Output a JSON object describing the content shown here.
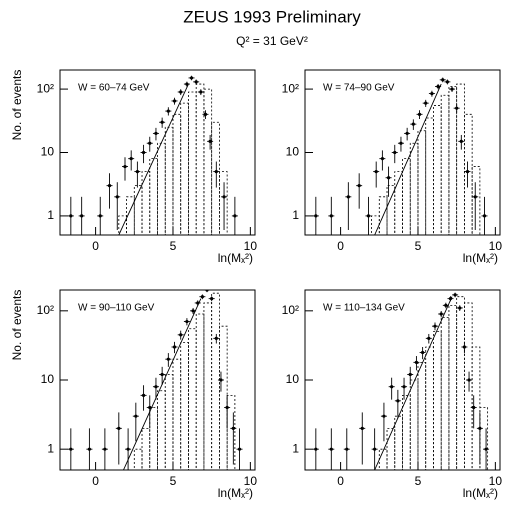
{
  "title": "ZEUS 1993 Preliminary",
  "subtitle": "Q² = 31 GeV²",
  "chart_data": [
    {
      "type": "errorbar",
      "label": "W = 60–74 GeV",
      "xlabel": "ln(Mₓ²)",
      "ylabel": "No. of events",
      "xlim": [
        -2.3,
        10.3
      ],
      "xticks": [
        0,
        5,
        10
      ],
      "ylim": [
        0.5,
        200
      ],
      "yticks": [
        1,
        10,
        {
          "value": 100,
          "label": "10²"
        }
      ],
      "log_y": true,
      "points": {
        "x": [
          -1.6,
          -0.9,
          0.3,
          0.9,
          1.4,
          1.9,
          2.3,
          2.7,
          3.1,
          3.5,
          3.9,
          4.3,
          4.7,
          5.1,
          5.5,
          5.9,
          6.2,
          6.5,
          6.8,
          7.1,
          7.4,
          7.8,
          8.3,
          9.0
        ],
        "values": [
          1,
          1,
          1,
          3,
          2,
          6,
          8,
          5,
          10,
          14,
          20,
          30,
          45,
          65,
          90,
          120,
          150,
          130,
          90,
          40,
          15,
          5,
          2,
          1
        ],
        "errors": [
          1,
          1,
          1,
          1.7,
          1.4,
          2.4,
          2.8,
          2.2,
          3.2,
          3.7,
          4.5,
          5.5,
          6.7,
          8,
          9.5,
          11,
          12,
          11.4,
          9.5,
          6.3,
          3.9,
          2.2,
          1.4,
          1
        ]
      },
      "histogram": {
        "bins": [
          1,
          1.5,
          2,
          2.5,
          3,
          3.5,
          4,
          4.5,
          5,
          5.5,
          6,
          6.5,
          7,
          7.5,
          8,
          8.5,
          9
        ],
        "counts": [
          0.4,
          1,
          2,
          3,
          5,
          8,
          14,
          25,
          40,
          60,
          90,
          120,
          100,
          30,
          5,
          0.4
        ]
      },
      "fit": {
        "x": [
          1.5,
          6.0
        ],
        "values": [
          0.5,
          120
        ]
      }
    },
    {
      "type": "errorbar",
      "label": "W = 74–90 GeV",
      "xlabel": "ln(Mₓ²)",
      "xlim": [
        -2.3,
        10.3
      ],
      "xticks": [
        0,
        5,
        10
      ],
      "ylim": [
        0.5,
        200
      ],
      "yticks": [
        1,
        10,
        {
          "value": 100,
          "label": "10²"
        }
      ],
      "log_y": true,
      "points": {
        "x": [
          -1.6,
          -0.6,
          0.5,
          1.2,
          1.8,
          2.3,
          2.7,
          3.1,
          3.5,
          3.9,
          4.3,
          4.7,
          5.1,
          5.5,
          5.9,
          6.3,
          6.6,
          6.9,
          7.2,
          7.5,
          7.8,
          8.2,
          8.7,
          9.3
        ],
        "values": [
          1,
          1,
          2,
          3,
          1,
          5,
          8,
          4,
          10,
          14,
          20,
          28,
          40,
          60,
          85,
          110,
          140,
          130,
          100,
          50,
          15,
          5,
          2,
          1
        ],
        "errors": [
          1,
          1,
          1.4,
          1.7,
          1,
          2.2,
          2.8,
          2,
          3.2,
          3.7,
          4.5,
          5.3,
          6.3,
          7.7,
          9.2,
          10.5,
          11.8,
          11.4,
          10,
          7.1,
          3.9,
          2.2,
          1.4,
          1
        ]
      },
      "histogram": {
        "bins": [
          1.5,
          2,
          2.5,
          3,
          3.5,
          4,
          4.5,
          5,
          5.5,
          6,
          6.5,
          7,
          7.5,
          8,
          8.5,
          9,
          9.5
        ],
        "counts": [
          0.4,
          1,
          2,
          3,
          5,
          8,
          14,
          22,
          35,
          55,
          80,
          110,
          120,
          40,
          6,
          0.4
        ]
      },
      "fit": {
        "x": [
          2.2,
          6.5
        ],
        "values": [
          0.5,
          120
        ]
      }
    },
    {
      "type": "errorbar",
      "label": "W = 90–110 GeV",
      "xlabel": "ln(Mₓ²)",
      "ylabel": "No. of events",
      "xlim": [
        -2.3,
        10.3
      ],
      "xticks": [
        0,
        5,
        10
      ],
      "ylim": [
        0.5,
        200
      ],
      "yticks": [
        1,
        10,
        {
          "value": 100,
          "label": "10²"
        }
      ],
      "log_y": true,
      "points": {
        "x": [
          -1.6,
          -0.4,
          0.6,
          1.5,
          2.1,
          2.6,
          3.1,
          3.5,
          3.9,
          4.3,
          4.7,
          5.1,
          5.5,
          5.9,
          6.3,
          6.6,
          6.9,
          7.2,
          7.5,
          7.8,
          8.1,
          8.5,
          8.9,
          9.3
        ],
        "values": [
          1,
          1,
          1,
          2,
          1,
          3,
          6,
          4,
          8,
          12,
          20,
          30,
          45,
          70,
          100,
          130,
          160,
          200,
          150,
          40,
          10,
          4,
          2,
          1
        ],
        "errors": [
          1,
          1,
          1,
          1.4,
          1,
          1.7,
          2.4,
          2,
          2.8,
          3.5,
          4.5,
          5.5,
          6.7,
          8.4,
          10,
          11.4,
          12.6,
          14,
          12.2,
          6.3,
          3.2,
          2,
          1.4,
          1
        ]
      },
      "histogram": {
        "bins": [
          1.5,
          2,
          2.5,
          3,
          3.5,
          4,
          4.5,
          5,
          5.5,
          6,
          6.5,
          7,
          7.5,
          8,
          8.5,
          9,
          9.5
        ],
        "counts": [
          0.4,
          0.4,
          1,
          2,
          4,
          7,
          12,
          20,
          35,
          55,
          90,
          130,
          180,
          60,
          6,
          0.4
        ]
      },
      "fit": {
        "x": [
          1.8,
          6.8
        ],
        "values": [
          0.5,
          150
        ]
      }
    },
    {
      "type": "errorbar",
      "label": "W = 110–134 GeV",
      "xlabel": "ln(Mₓ²)",
      "xlim": [
        -2.3,
        10.3
      ],
      "xticks": [
        0,
        5,
        10
      ],
      "ylim": [
        0.5,
        200
      ],
      "yticks": [
        1,
        10,
        {
          "value": 100,
          "label": "10²"
        }
      ],
      "log_y": true,
      "points": {
        "x": [
          -1.6,
          -0.6,
          0.4,
          1.4,
          2.2,
          2.8,
          3.3,
          3.7,
          4.1,
          4.5,
          4.9,
          5.3,
          5.7,
          6.1,
          6.5,
          6.8,
          7.1,
          7.4,
          7.7,
          8.0,
          8.3,
          8.6,
          9.0,
          9.4
        ],
        "values": [
          1,
          1,
          1,
          2,
          1,
          3,
          8,
          5,
          8,
          12,
          18,
          25,
          40,
          60,
          90,
          120,
          150,
          170,
          110,
          30,
          10,
          4,
          2,
          1
        ],
        "errors": [
          1,
          1,
          1,
          1.4,
          1,
          1.7,
          2.8,
          2.2,
          2.8,
          3.5,
          4.2,
          5,
          6.3,
          7.7,
          9.5,
          11,
          12.2,
          13,
          10.5,
          5.5,
          3.2,
          2,
          1.4,
          1
        ]
      },
      "histogram": {
        "bins": [
          2,
          2.5,
          3,
          3.5,
          4,
          4.5,
          5,
          5.5,
          6,
          6.5,
          7,
          7.5,
          8,
          8.5,
          9,
          9.5,
          10
        ],
        "counts": [
          0.4,
          1,
          2,
          3,
          6,
          10,
          18,
          30,
          50,
          80,
          120,
          160,
          130,
          30,
          4,
          0.4
        ]
      },
      "fit": {
        "x": [
          2.2,
          7.2
        ],
        "values": [
          0.5,
          160
        ]
      }
    }
  ]
}
